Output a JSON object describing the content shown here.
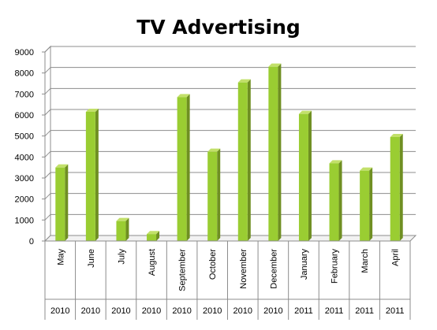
{
  "chart_data": {
    "type": "bar",
    "title": "TV Advertising",
    "xlabel": "",
    "ylabel": "",
    "categories": [
      "May",
      "June",
      "July",
      "August",
      "September",
      "October",
      "November",
      "December",
      "January",
      "February",
      "March",
      "April"
    ],
    "years": [
      "2010",
      "2010",
      "2010",
      "2010",
      "2010",
      "2010",
      "2010",
      "2010",
      "2011",
      "2011",
      "2011",
      "2011"
    ],
    "values": [
      3500,
      6150,
      950,
      330,
      6850,
      4250,
      7550,
      8300,
      6050,
      3700,
      3350,
      4950
    ],
    "ylim": [
      0,
      9000
    ],
    "yticks": [
      0,
      1000,
      2000,
      3000,
      4000,
      5000,
      6000,
      7000,
      8000,
      9000
    ],
    "grid": true,
    "legend": "none",
    "colors": {
      "bar_front": "#9acd32",
      "bar_side": "#6f8f22",
      "bar_top": "#c2e06a",
      "grid": "#8c8c8c"
    }
  }
}
